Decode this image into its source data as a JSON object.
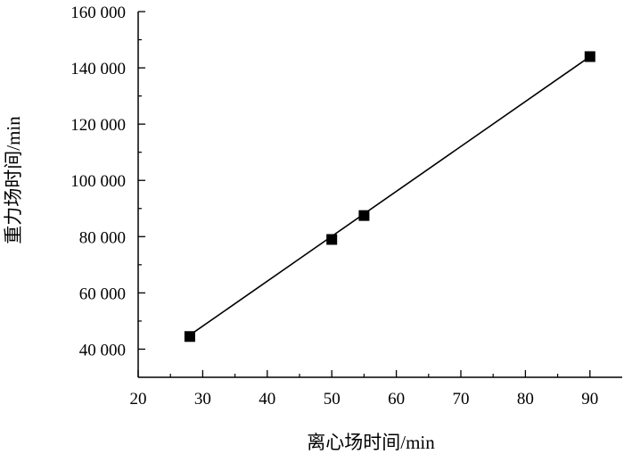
{
  "chart_data": {
    "type": "scatter",
    "title": "",
    "xlabel": "离心场时间/min",
    "ylabel": "重力场时间/min",
    "xlim": [
      20,
      95
    ],
    "ylim": [
      30000,
      160000
    ],
    "x_ticks": [
      20,
      30,
      40,
      50,
      60,
      70,
      80,
      90
    ],
    "x_tick_labels": [
      "20",
      "30",
      "40",
      "50",
      "60",
      "70",
      "80",
      "90"
    ],
    "y_ticks": [
      40000,
      60000,
      80000,
      100000,
      120000,
      140000,
      160000
    ],
    "y_tick_labels": [
      "40 000",
      "60 000",
      "80 000",
      "100 000",
      "120 000",
      "140 000",
      "160 000"
    ],
    "grid": false,
    "series": [
      {
        "marker": "square",
        "color": "#000000",
        "x": [
          28,
          50,
          55,
          90
        ],
        "y": [
          44500,
          79000,
          87500,
          144000
        ]
      }
    ],
    "fit_line": {
      "x": [
        28,
        90
      ],
      "y": [
        45000,
        144000
      ],
      "color": "#000000"
    }
  }
}
